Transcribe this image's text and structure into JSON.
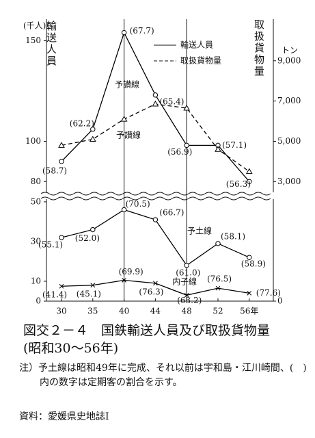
{
  "chart_data": [
    {
      "type": "line",
      "ylabel_unit": "(千人)",
      "ylabel": "輸送人員",
      "y2label": "取扱貨物量",
      "y2label_unit": "トン",
      "ylim": [
        75,
        160
      ],
      "yticks": [
        80,
        100,
        150
      ],
      "y2lim": [
        2500,
        11000
      ],
      "y2ticks": [
        {
          "value": 3000,
          "label": "3,000"
        },
        {
          "value": 5000,
          "label": "5,000"
        },
        {
          "value": 7000,
          "label": "7,000"
        },
        {
          "value": 9000,
          "label": "9,000"
        }
      ],
      "line_labels": [
        "予讃線",
        "予讃線"
      ],
      "series": [
        {
          "name": "輸送人員",
          "color": "#000000",
          "dash": false,
          "marker": "circle",
          "values": [
            90,
            106,
            154,
            123,
            98,
            98,
            80
          ],
          "notes": [
            "(58.7)",
            "(62.2)",
            "(67.7)",
            "(65.4)",
            "(56.9)",
            "(57.1)",
            "(56.3)"
          ]
        },
        {
          "name": "取扱貨物量",
          "color": "#000000",
          "dash": true,
          "marker": "triangle",
          "axis": "y2",
          "values": [
            4800,
            5100,
            6100,
            6850,
            6650,
            4600,
            3500
          ]
        }
      ]
    },
    {
      "type": "line",
      "categories": [
        "30",
        "35",
        "40",
        "44",
        "48",
        "52",
        "56年"
      ],
      "ylim": [
        0,
        51
      ],
      "yticks": [
        0,
        10,
        30,
        50
      ],
      "y2lim": [
        0,
        51
      ],
      "y2ticks": [
        0
      ],
      "series": [
        {
          "name": "予土線",
          "color": "#000000",
          "dash": false,
          "marker": "circle",
          "values": [
            32,
            36,
            46,
            41,
            18,
            29,
            22
          ],
          "notes": [
            "(55.1)",
            "(52.0)",
            "(70.5)",
            "(66.7)",
            "(61.0)",
            "(58.1)",
            "(58.9)"
          ]
        },
        {
          "name": "内子線",
          "color": "#000000",
          "dash": false,
          "marker": "cross",
          "values": [
            7.5,
            8,
            10.5,
            9,
            3,
            6.5,
            4
          ],
          "notes": [
            "(41.4)",
            "(45.1)",
            "(69.9)",
            "(76.3)",
            "(63.2)",
            "(76.5)",
            "(77.6)"
          ]
        }
      ]
    }
  ],
  "caption": "図交２－４　国鉄輸送人員及び取扱貨物量(昭和30～56年)",
  "note": "注）予土線は昭和49年に完成、それ以前は宇和島・江川崎間、(　)内の数字は定期客の割合を示す。",
  "source": "資料：愛媛県史地誌Ⅰ"
}
